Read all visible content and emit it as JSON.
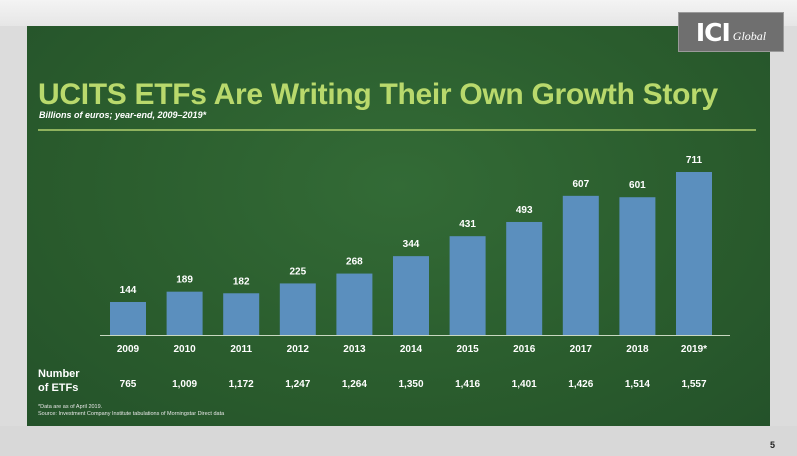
{
  "slide": {
    "title": "UCITS ETFs Are Writing Their Own Growth Story",
    "subtitle": "Billions of euros; year-end, 2009–2019*",
    "logo_main": "ICI",
    "logo_sub": "Global",
    "page_number": "5",
    "etf_row_label_line1": "Number",
    "etf_row_label_line2": "of ETFs",
    "footnote_1": "*Data are as of April 2019.",
    "footnote_2": "Source: Investment Company Institute tabulations of Morningstar Direct data"
  },
  "colors": {
    "background": "#2a5e2e",
    "bar": "#5b8fbe",
    "title": "#b9d96c",
    "text": "#ffffff"
  },
  "chart_data": {
    "type": "bar",
    "title": "UCITS ETFs Are Writing Their Own Growth Story",
    "subtitle": "Billions of euros; year-end, 2009–2019*",
    "categories": [
      "2009",
      "2010",
      "2011",
      "2012",
      "2013",
      "2014",
      "2015",
      "2016",
      "2017",
      "2018",
      "2019*"
    ],
    "values": [
      144,
      189,
      182,
      225,
      268,
      344,
      431,
      493,
      607,
      601,
      711
    ],
    "data_labels": [
      "144",
      "189",
      "182",
      "225",
      "268",
      "344",
      "431",
      "493",
      "607",
      "601",
      "711"
    ],
    "number_of_etfs": [
      "765",
      "1,009",
      "1,172",
      "1,247",
      "1,264",
      "1,350",
      "1,416",
      "1,401",
      "1,426",
      "1,514",
      "1,557"
    ],
    "ylim": [
      0,
      711
    ],
    "grid": false,
    "legend": "none"
  }
}
